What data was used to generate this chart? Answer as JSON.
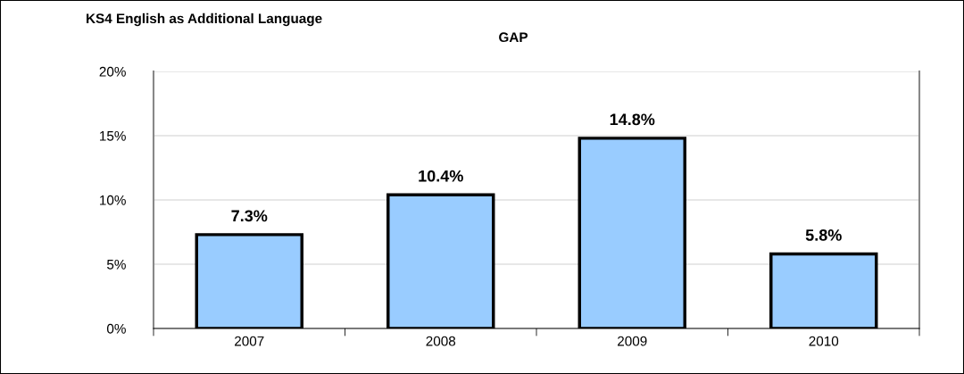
{
  "chart_data": {
    "type": "bar",
    "title": "KS4 English as Additional Language",
    "subtitle": "GAP",
    "categories": [
      "2007",
      "2008",
      "2009",
      "2010"
    ],
    "values": [
      7.3,
      10.4,
      14.8,
      5.8
    ],
    "color": "#99ccff",
    "value_labels": [
      "7.3%",
      "10.4%",
      "14.8%",
      "5.8%"
    ],
    "ylim": [
      0,
      20
    ],
    "yticks": [
      {
        "value": 0,
        "label": "0%"
      },
      {
        "value": 5,
        "label": "5%"
      },
      {
        "value": 10,
        "label": "10%"
      },
      {
        "value": 15,
        "label": "15%"
      },
      {
        "value": 20,
        "label": "20%"
      }
    ],
    "grid": "y"
  }
}
